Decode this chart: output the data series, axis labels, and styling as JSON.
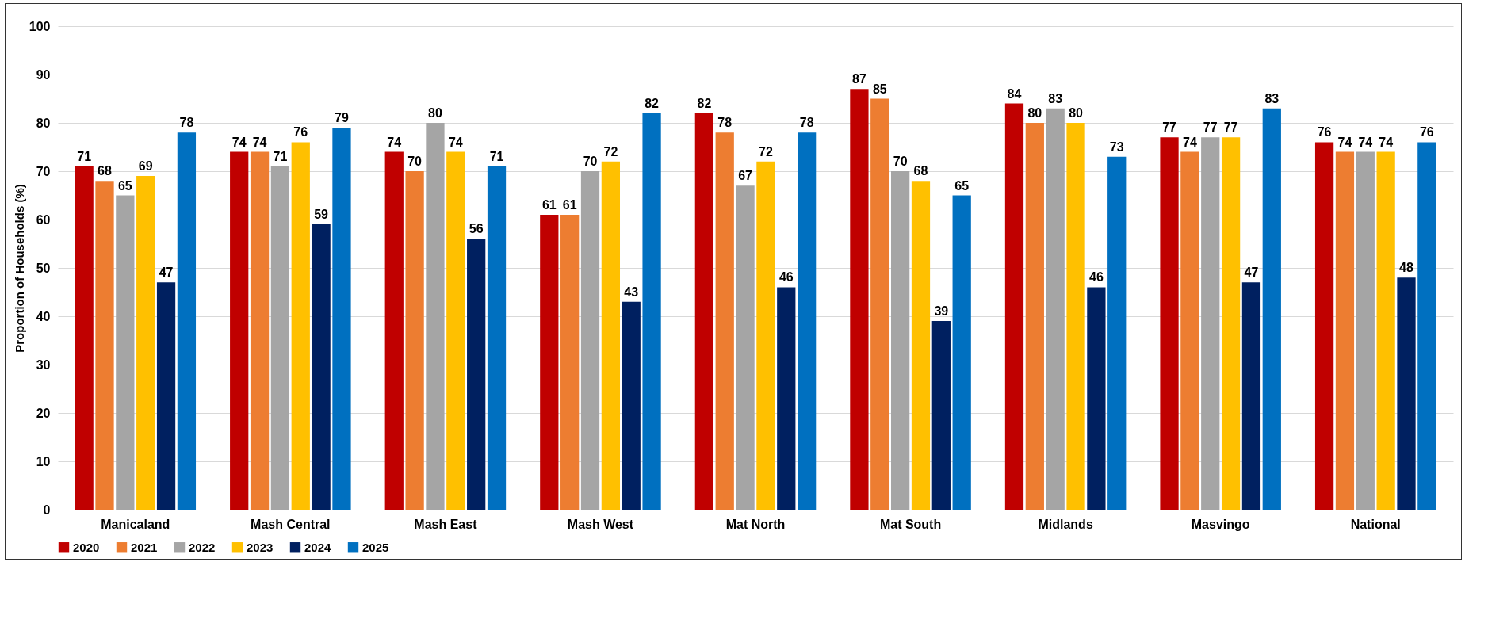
{
  "chart_data": {
    "type": "bar",
    "ylabel": "Proportion of Households (%)",
    "categories": [
      "Manicaland",
      "Mash Central",
      "Mash East",
      "Mash West",
      "Mat North",
      "Mat South",
      "Midlands",
      "Masvingo",
      "National"
    ],
    "series": [
      {
        "name": "2020",
        "color": "#c00000",
        "values": [
          71,
          74,
          74,
          61,
          82,
          87,
          84,
          77,
          76
        ]
      },
      {
        "name": "2021",
        "color": "#ed7d31",
        "values": [
          68,
          74,
          70,
          61,
          78,
          85,
          80,
          74,
          74
        ]
      },
      {
        "name": "2022",
        "color": "#a5a5a5",
        "values": [
          65,
          71,
          80,
          70,
          67,
          70,
          83,
          77,
          74
        ]
      },
      {
        "name": "2023",
        "color": "#ffc000",
        "values": [
          69,
          76,
          74,
          72,
          72,
          68,
          80,
          77,
          74
        ]
      },
      {
        "name": "2024",
        "color": "#002060",
        "values": [
          47,
          59,
          56,
          43,
          46,
          39,
          46,
          47,
          48
        ]
      },
      {
        "name": "2025",
        "color": "#0070c0",
        "values": [
          78,
          79,
          71,
          82,
          78,
          65,
          73,
          83,
          76
        ]
      }
    ],
    "ylim": [
      0,
      100
    ],
    "yticks": [
      0,
      10,
      20,
      30,
      40,
      50,
      60,
      70,
      80,
      90,
      100
    ],
    "grid": "y",
    "legend": "bottom",
    "data_labels": true
  }
}
